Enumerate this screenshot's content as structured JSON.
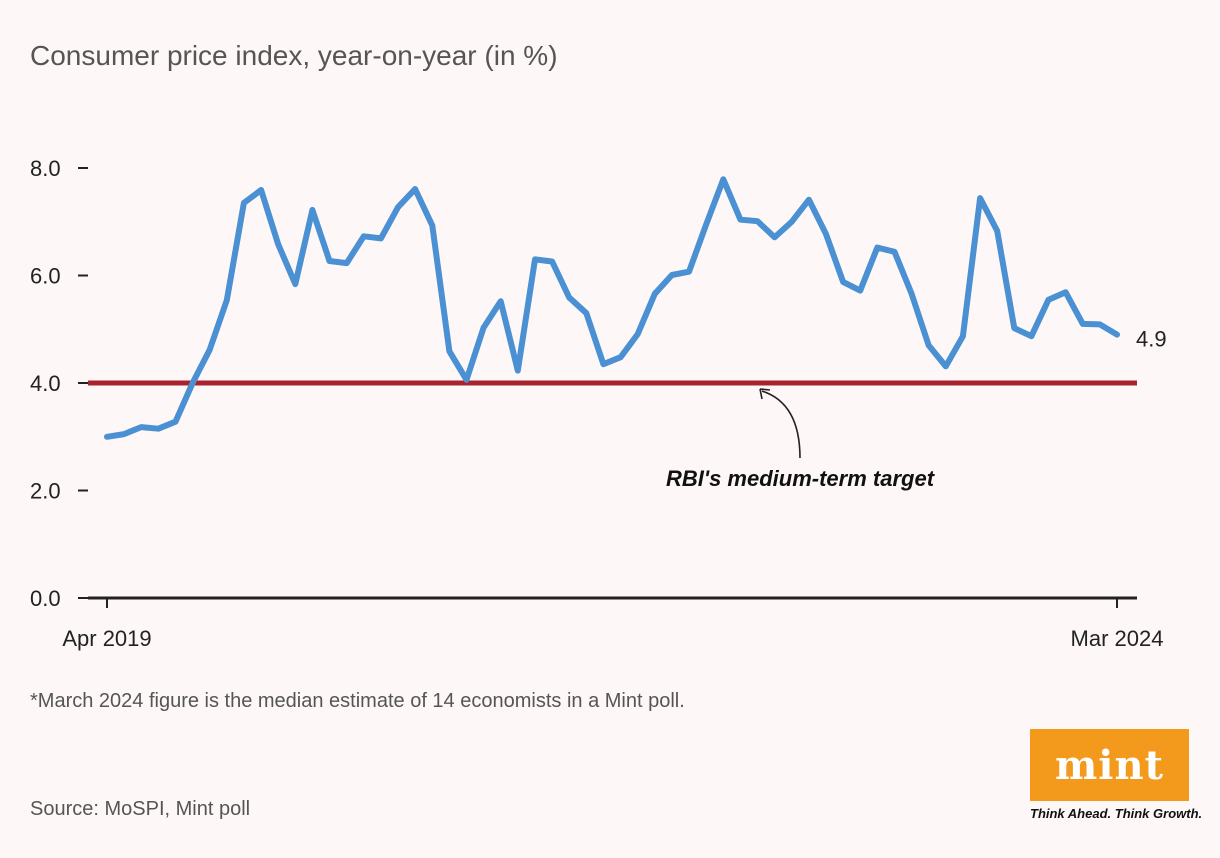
{
  "chart_data": {
    "type": "line",
    "title": "Consumer price index, year-on-year (in %)",
    "xlabel": "",
    "ylabel": "",
    "ylim": [
      0,
      8
    ],
    "yticks": [
      "0.0",
      "2.0",
      "4.0",
      "6.0",
      "8.0"
    ],
    "x_tick_labels": [
      "Apr 2019",
      "Mar 2024"
    ],
    "x_start": "2019-04",
    "x_end": "2024-03",
    "grid": false,
    "series": [
      {
        "color": "#4a90d2",
        "values": [
          3.0,
          3.05,
          3.18,
          3.15,
          3.28,
          4.0,
          4.62,
          5.54,
          7.35,
          7.59,
          6.58,
          5.84,
          7.22,
          6.27,
          6.23,
          6.73,
          6.69,
          7.27,
          7.61,
          6.93,
          4.59,
          4.06,
          5.03,
          5.52,
          4.23,
          6.3,
          6.26,
          5.59,
          5.3,
          4.35,
          4.48,
          4.91,
          5.66,
          6.01,
          6.07,
          6.95,
          7.79,
          7.04,
          7.01,
          6.71,
          7.0,
          7.41,
          6.77,
          5.88,
          5.72,
          6.52,
          6.44,
          5.66,
          4.7,
          4.31,
          4.87,
          7.44,
          6.83,
          5.02,
          4.87,
          5.55,
          5.69,
          5.1,
          5.09,
          4.9
        ]
      }
    ],
    "end_label": "4.9",
    "reference_line": {
      "value": 4.0,
      "label": "RBI's medium-term target",
      "color": "#a8232d"
    }
  },
  "footnote": "*March 2024 figure is the median estimate of 14 economists in a Mint poll.",
  "source": "Source: MoSPI, Mint poll",
  "logo": {
    "word": "mint",
    "tagline": "Think Ahead. Think Growth.",
    "color": "#f39a1c"
  }
}
